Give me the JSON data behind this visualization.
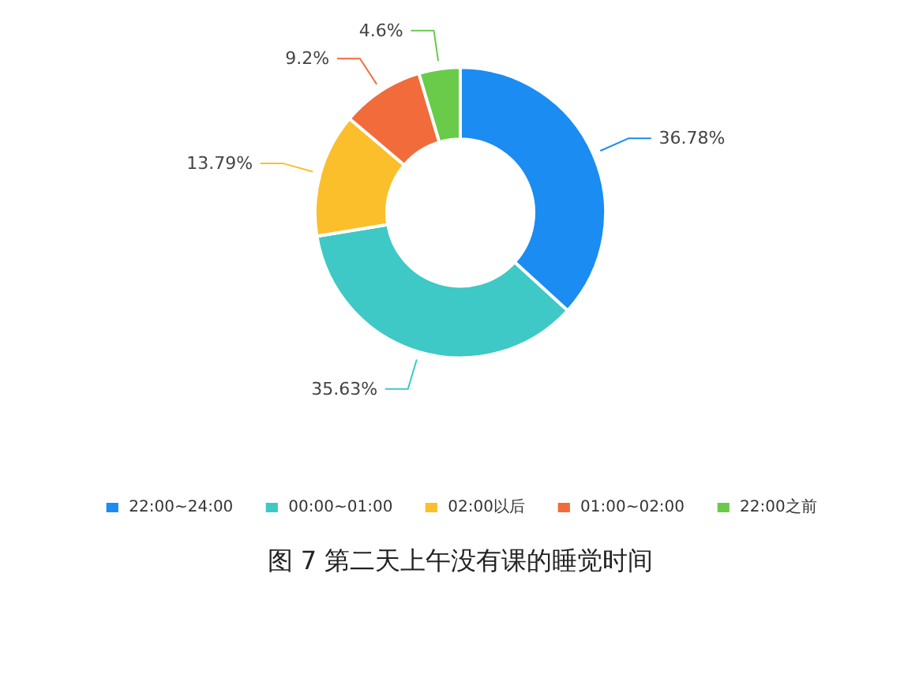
{
  "chart_data": {
    "type": "donut",
    "title": "图 7 第二天上午没有课的睡觉时间",
    "categories": [
      "22:00~24:00",
      "00:00~01:00",
      "02:00以后",
      "01:00~02:00",
      "22:00之前"
    ],
    "values": [
      36.78,
      35.63,
      13.79,
      9.2,
      4.6
    ],
    "colors": [
      "#1a8cf2",
      "#3ec9c6",
      "#fbbf2c",
      "#f26b3a",
      "#6acb4a"
    ],
    "value_labels": [
      "36.78%",
      "35.63%",
      "13.79%",
      "9.2%",
      "4.6%"
    ],
    "legend": "bottom"
  }
}
